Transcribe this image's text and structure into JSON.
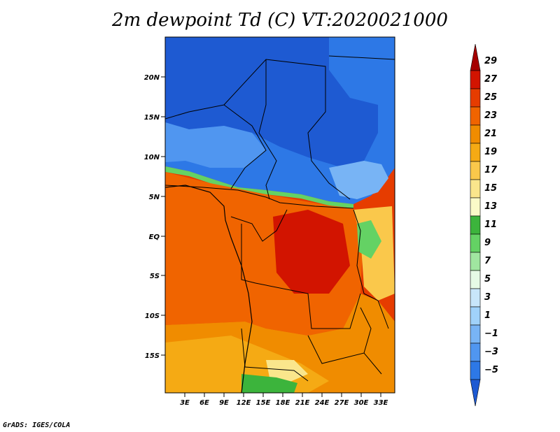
{
  "title": "2m dewpoint Td (C) VT:2020021000",
  "credit": "GrADS: IGES/COLA",
  "map": {
    "lat_labels": [
      "20N",
      "15N",
      "10N",
      "5N",
      "EQ",
      "5S",
      "10S",
      "15S"
    ],
    "lon_labels": [
      "3E",
      "6E",
      "9E",
      "12E",
      "15E",
      "18E",
      "21E",
      "24E",
      "27E",
      "30E",
      "33E"
    ]
  },
  "colorbar": {
    "labels": [
      "29",
      "27",
      "25",
      "23",
      "21",
      "19",
      "17",
      "15",
      "13",
      "11",
      "9",
      "7",
      "5",
      "3",
      "1",
      "−1",
      "−3",
      "−5"
    ],
    "colors": [
      "#a50000",
      "#d21400",
      "#e63c00",
      "#f06400",
      "#f08c00",
      "#f5aa14",
      "#fac84b",
      "#fae68c",
      "#fafac8",
      "#3cb43c",
      "#64d264",
      "#a0e6a0",
      "#e6fae6",
      "#c8e6fa",
      "#a0d2fa",
      "#78b4f5",
      "#5096f0",
      "#2d78e6",
      "#1e5ad2"
    ]
  }
}
